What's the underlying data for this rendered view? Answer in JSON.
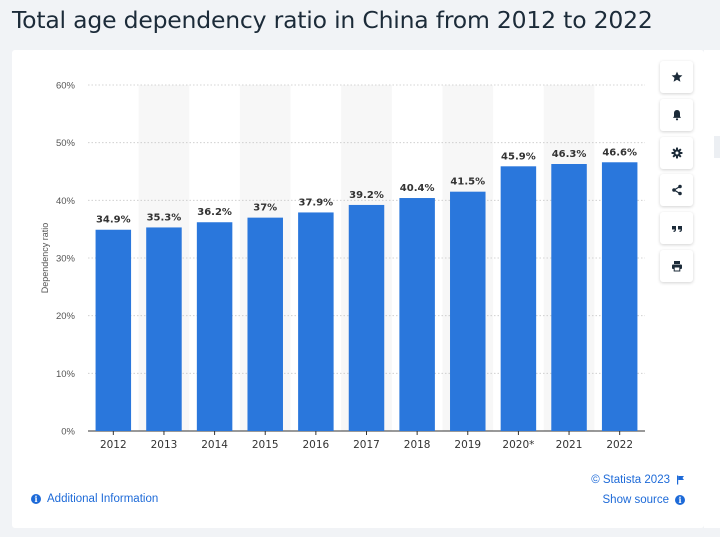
{
  "page": {
    "title": "Total age dependency ratio in China from 2012 to 2022"
  },
  "colors": {
    "bar": "#2a77dc",
    "band": "#f7f7f7",
    "grid": "#c8c8c8",
    "title": "#1c2b39",
    "link": "#1d6ad8"
  },
  "chart_data": {
    "type": "bar",
    "categories": [
      "2012",
      "2013",
      "2014",
      "2015",
      "2016",
      "2017",
      "2018",
      "2019",
      "2020*",
      "2021",
      "2022"
    ],
    "values": [
      34.9,
      35.3,
      36.2,
      37,
      37.9,
      39.2,
      40.4,
      41.5,
      45.9,
      46.3,
      46.6
    ],
    "value_labels": [
      "34.9%",
      "35.3%",
      "36.2%",
      "37%",
      "37.9%",
      "39.2%",
      "40.4%",
      "41.5%",
      "45.9%",
      "46.3%",
      "46.6%"
    ],
    "ylabel": "Dependency ratio",
    "xlabel": "",
    "ylim": [
      0,
      60
    ],
    "yticks": [
      0,
      10,
      20,
      30,
      40,
      50,
      60
    ],
    "ytick_labels": [
      "0%",
      "10%",
      "20%",
      "30%",
      "40%",
      "50%",
      "60%"
    ],
    "grid": true
  },
  "toolbar": {
    "items": [
      {
        "name": "favorite",
        "icon": "star-icon"
      },
      {
        "name": "notify",
        "icon": "bell-icon"
      },
      {
        "name": "settings",
        "icon": "gear-icon"
      },
      {
        "name": "share",
        "icon": "share-icon"
      },
      {
        "name": "cite",
        "icon": "quote-icon"
      },
      {
        "name": "print",
        "icon": "printer-icon"
      }
    ]
  },
  "footer": {
    "additional_info": "Additional Information",
    "copyright": "© Statista 2023",
    "show_source": "Show source"
  }
}
